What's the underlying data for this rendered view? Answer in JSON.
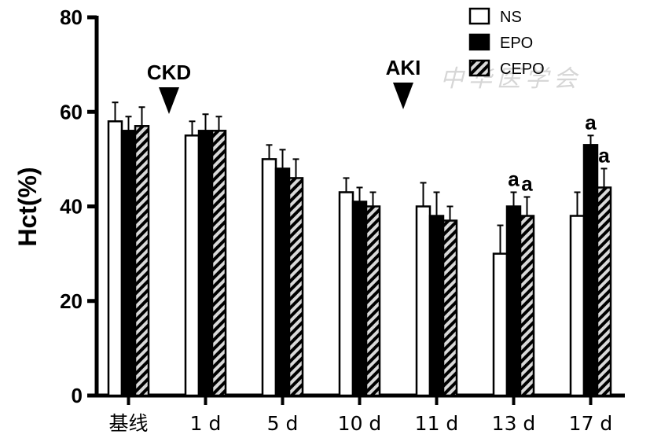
{
  "chart_data": {
    "type": "bar",
    "title": "",
    "xlabel": "",
    "ylabel": "Hct(%)",
    "ylim": [
      0,
      80
    ],
    "yticks": [
      0,
      20,
      40,
      60,
      80
    ],
    "grid": false,
    "legend_position": "top-right",
    "categories": [
      "基线",
      "1 d",
      "5 d",
      "10 d",
      "11 d",
      "13 d",
      "17 d"
    ],
    "series": [
      {
        "name": "NS",
        "fill": "white",
        "values": [
          58,
          55,
          50,
          43,
          40,
          30,
          38
        ],
        "errors": [
          4,
          3,
          3,
          3,
          5,
          6,
          5
        ],
        "significance": [
          "",
          "",
          "",
          "",
          "",
          "",
          ""
        ]
      },
      {
        "name": "EPO",
        "fill": "black",
        "values": [
          56,
          56,
          48,
          41,
          38,
          40,
          53
        ],
        "errors": [
          3,
          3.5,
          4,
          3,
          5,
          3,
          2
        ],
        "significance": [
          "",
          "",
          "",
          "",
          "",
          "a",
          "a"
        ]
      },
      {
        "name": "CEPO",
        "fill": "hatched",
        "values": [
          57,
          56,
          46,
          40,
          37,
          38,
          44
        ],
        "errors": [
          4,
          3,
          4,
          3,
          3,
          4,
          4
        ],
        "significance": [
          "",
          "",
          "",
          "",
          "",
          "a",
          "a"
        ]
      }
    ],
    "annotations": [
      {
        "label": "CKD",
        "category_index": 0.5
      },
      {
        "label": "AKI",
        "category_index": 3.5
      }
    ]
  },
  "watermark": "中华医学会",
  "colors": {
    "ink": "#000000",
    "hatch_light": "#d9d9d9",
    "background": "#ffffff"
  }
}
